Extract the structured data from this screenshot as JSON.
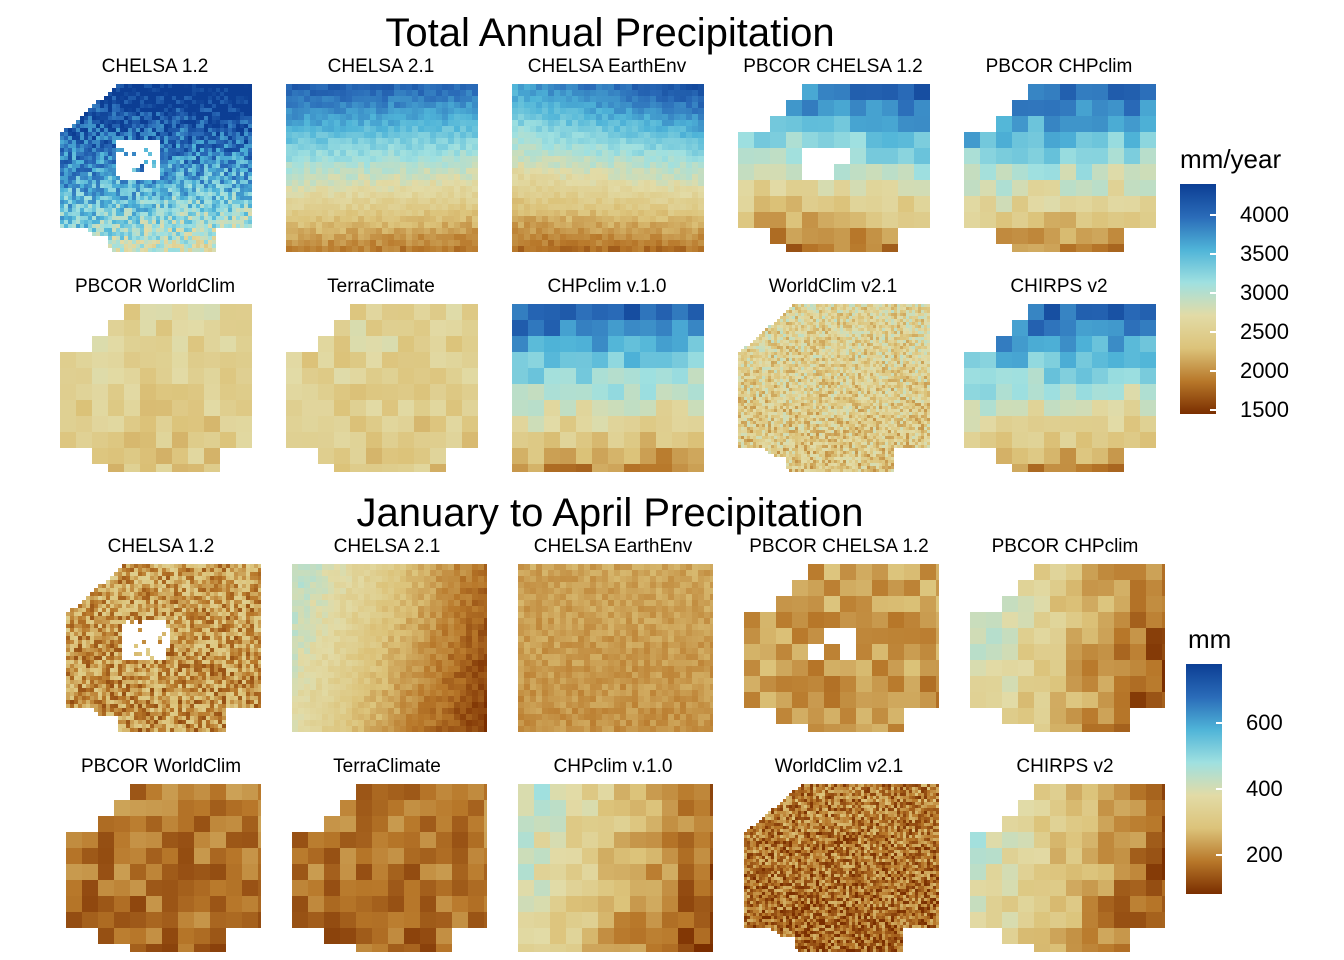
{
  "sections": [
    {
      "title": "Total Annual Precipitation",
      "panels": [
        "CHELSA 1.2",
        "CHELSA 2.1",
        "CHELSA EarthEnv",
        "PBCOR CHELSA 1.2",
        "PBCOR CHPclim",
        "PBCOR WorldClim",
        "TerraClimate",
        "CHPclim v.1.0",
        "WorldClim v2.1",
        "CHIRPS v2"
      ],
      "legend": {
        "title": "mm/year",
        "min": 1450,
        "max": 4400,
        "ticks": [
          "4000",
          "3500",
          "3000",
          "2500",
          "2000",
          "1500"
        ]
      }
    },
    {
      "title": "January to April Precipitation",
      "panels": [
        "CHELSA 1.2",
        "CHELSA 2.1",
        "CHELSA EarthEnv",
        "PBCOR CHELSA 1.2",
        "PBCOR CHPclim",
        "PBCOR WorldClim",
        "TerraClimate",
        "CHPclim v.1.0",
        "WorldClim v2.1",
        "CHIRPS v2"
      ],
      "legend": {
        "title": "mm",
        "min": 80,
        "max": 780,
        "ticks": [
          "600",
          "400",
          "200"
        ]
      }
    }
  ],
  "colors": {
    "scale": [
      "#7a2e00",
      "#b8782a",
      "#dcc37a",
      "#e2dba6",
      "#9fe0e0",
      "#4fb4d8",
      "#2a6bb8",
      "#0c3e94"
    ]
  }
}
